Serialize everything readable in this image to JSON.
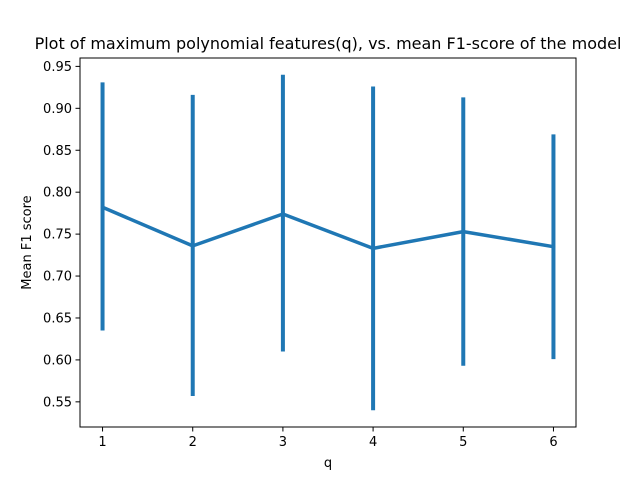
{
  "chart_data": {
    "type": "line",
    "title": "Plot of maximum polynomial features(q), vs. mean F1-score of the model",
    "xlabel": "q",
    "ylabel": "Mean F1 score",
    "x": [
      1,
      2,
      3,
      4,
      5,
      6
    ],
    "series": [
      {
        "values": [
          0.782,
          0.736,
          0.774,
          0.733,
          0.753,
          0.735
        ],
        "error_low": [
          0.635,
          0.557,
          0.61,
          0.54,
          0.593,
          0.601
        ],
        "error_high": [
          0.931,
          0.916,
          0.94,
          0.926,
          0.913,
          0.869
        ],
        "color": "#1f77b4"
      }
    ],
    "xticks": [
      "1",
      "2",
      "3",
      "4",
      "5",
      "6"
    ],
    "yticks": [
      "0.55",
      "0.60",
      "0.65",
      "0.70",
      "0.75",
      "0.80",
      "0.85",
      "0.90",
      "0.95"
    ],
    "xlim": [
      0.75,
      6.25
    ],
    "ylim": [
      0.52,
      0.96
    ],
    "grid": false,
    "legend": false
  }
}
